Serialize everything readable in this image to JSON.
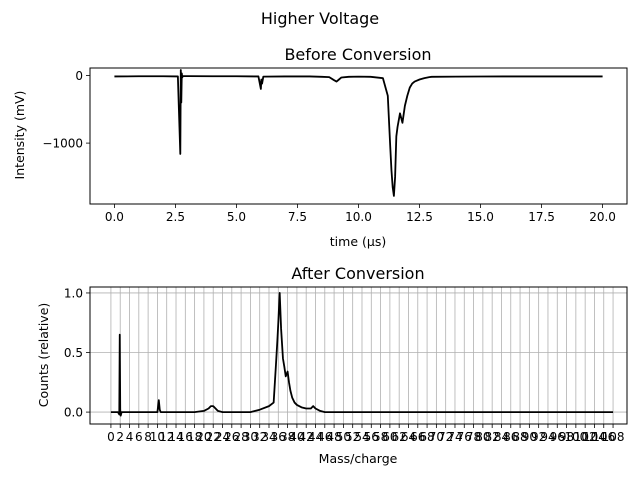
{
  "figure": {
    "suptitle": "Higher Voltage"
  },
  "chart_data": [
    {
      "type": "line",
      "title": "Before Conversion",
      "xlabel": "time (μs)",
      "ylabel": "Intensity (mV)",
      "xlim": [
        -1.0,
        21.0
      ],
      "ylim": [
        -1900,
        110
      ],
      "xticks": [
        0.0,
        2.5,
        5.0,
        7.5,
        10.0,
        12.5,
        15.0,
        17.5,
        20.0
      ],
      "xtick_labels": [
        "0.0",
        "2.5",
        "5.0",
        "7.5",
        "10.0",
        "12.5",
        "15.0",
        "17.5",
        "20.0"
      ],
      "yticks": [
        0,
        -1000
      ],
      "ytick_labels": [
        "0",
        "−1000"
      ],
      "grid": false,
      "line_color": "#000000",
      "series": [
        {
          "x": [
            0.0,
            1.0,
            2.0,
            2.6,
            2.7,
            2.72,
            2.74,
            2.76,
            2.78,
            2.8,
            3.0,
            4.0,
            5.0,
            5.9,
            6.0,
            6.02,
            6.05,
            6.1,
            7.0,
            8.0,
            8.5,
            8.8,
            9.0,
            9.1,
            9.2,
            9.3,
            9.6,
            10.0,
            10.5,
            11.0,
            11.2,
            11.3,
            11.35,
            11.4,
            11.45,
            11.5,
            11.55,
            11.6,
            11.7,
            11.8,
            11.9,
            12.0,
            12.1,
            12.2,
            12.3,
            12.5,
            12.7,
            12.9,
            13.0,
            14.0,
            15.0,
            16.0,
            17.0,
            18.0,
            19.0,
            20.0
          ],
          "y": [
            -15,
            -12,
            -12,
            -15,
            -1160,
            80,
            -400,
            30,
            -30,
            -10,
            -10,
            -12,
            -12,
            -15,
            -200,
            -60,
            -120,
            -18,
            -15,
            -15,
            -20,
            -25,
            -70,
            -90,
            -60,
            -30,
            -20,
            -18,
            -20,
            -40,
            -300,
            -1050,
            -1400,
            -1650,
            -1780,
            -1500,
            -900,
            -760,
            -560,
            -700,
            -450,
            -300,
            -180,
            -120,
            -90,
            -60,
            -40,
            -25,
            -20,
            -18,
            -16,
            -15,
            -15,
            -15,
            -15,
            -15
          ]
        }
      ]
    },
    {
      "type": "line",
      "title": "After Conversion",
      "xlabel": "Mass/charge",
      "ylabel": "Counts (relative)",
      "xlim": [
        -4.5,
        111.0
      ],
      "ylim": [
        -0.1,
        1.05
      ],
      "xticks": [
        0,
        2,
        4,
        6,
        8,
        10,
        12,
        14,
        16,
        18,
        20,
        22,
        24,
        26,
        28,
        30,
        32,
        34,
        36,
        38,
        40,
        42,
        44,
        46,
        48,
        50,
        52,
        54,
        56,
        58,
        60,
        62,
        64,
        66,
        68,
        70,
        72,
        74,
        76,
        78,
        80,
        82,
        84,
        86,
        88,
        90,
        92,
        94,
        96,
        98,
        100,
        102,
        104,
        106,
        108
      ],
      "yticks": [
        0.0,
        0.5,
        1.0
      ],
      "ytick_labels": [
        "0.0",
        "0.5",
        "1.0"
      ],
      "grid": true,
      "line_color": "#000000",
      "series": [
        {
          "x": [
            0,
            1,
            1.5,
            1.8,
            1.9,
            2.0,
            2.1,
            2.3,
            3,
            5,
            8,
            10,
            10.3,
            10.5,
            10.7,
            11,
            13,
            16,
            18,
            20,
            21,
            21.5,
            22,
            22.5,
            23,
            24,
            26,
            28,
            30,
            32,
            34,
            35,
            35.5,
            35.8,
            36,
            36.3,
            36.6,
            37,
            37.3,
            37.6,
            38,
            38.3,
            38.6,
            39,
            39.5,
            40,
            41,
            42,
            43,
            43.5,
            44,
            45,
            46,
            48,
            50,
            55,
            60,
            65,
            70,
            75,
            80,
            85,
            90,
            95,
            100,
            105,
            108
          ],
          "y": [
            0.0,
            0.0,
            0.0,
            -0.02,
            0.65,
            0.02,
            -0.03,
            0.0,
            0.0,
            0.0,
            0.0,
            0.0,
            0.1,
            0.02,
            0.0,
            0.0,
            0.0,
            0.0,
            0.0,
            0.01,
            0.03,
            0.05,
            0.05,
            0.03,
            0.01,
            0.0,
            0.0,
            0.0,
            0.0,
            0.02,
            0.05,
            0.08,
            0.4,
            0.6,
            0.75,
            1.0,
            0.7,
            0.45,
            0.38,
            0.3,
            0.34,
            0.25,
            0.18,
            0.12,
            0.08,
            0.06,
            0.04,
            0.03,
            0.03,
            0.05,
            0.03,
            0.01,
            0.0,
            0.0,
            0.0,
            0.0,
            0.0,
            0.0,
            0.0,
            0.0,
            0.0,
            0.0,
            0.0,
            0.0,
            0.0,
            0.0,
            0.0
          ]
        }
      ]
    }
  ]
}
